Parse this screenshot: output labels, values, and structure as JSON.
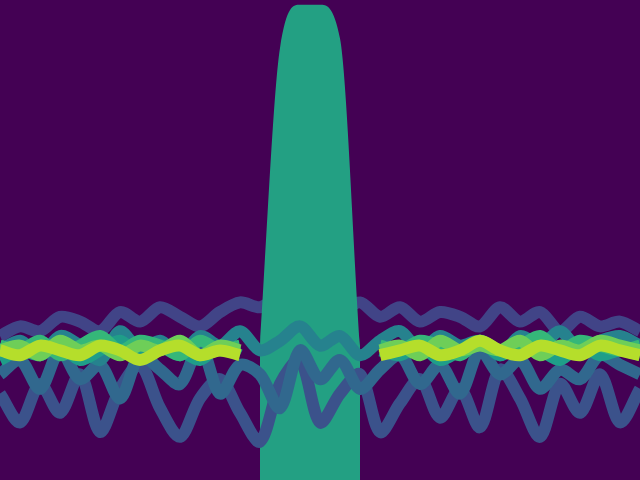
{
  "chart_data": {
    "type": "line",
    "x": [
      0,
      1,
      2,
      3,
      4,
      5,
      6,
      7,
      8,
      9,
      10,
      11,
      12,
      13,
      14,
      15,
      16,
      17,
      18,
      19,
      20,
      21,
      22,
      23,
      24,
      25,
      26,
      27,
      28,
      29,
      30,
      31,
      32
    ],
    "xlim": [
      0,
      32
    ],
    "ylim": [
      0,
      100
    ],
    "grid": false,
    "tick_labels": false,
    "series": [
      {
        "type": "line",
        "color": "#414487",
        "values": [
          30,
          32,
          31,
          34,
          33,
          31,
          35,
          33,
          36,
          34,
          32,
          35,
          37,
          36,
          38,
          37,
          36,
          35,
          37,
          34,
          36,
          33,
          35,
          34,
          32,
          36,
          33,
          35,
          31,
          34,
          32,
          33,
          31
        ]
      },
      {
        "type": "area",
        "color": "#23a083",
        "values": [
          null,
          null,
          null,
          null,
          null,
          null,
          null,
          null,
          null,
          null,
          null,
          null,
          null,
          28,
          90,
          99,
          99,
          92,
          28,
          null,
          null,
          null,
          null,
          null,
          null,
          null,
          null,
          null,
          null,
          null,
          null,
          null,
          null
        ]
      },
      {
        "type": "line",
        "color": "#3b528b",
        "values": [
          18,
          12,
          20,
          14,
          22,
          10,
          19,
          24,
          15,
          9,
          17,
          21,
          14,
          8,
          20,
          25,
          12,
          18,
          22,
          10,
          16,
          21,
          13,
          19,
          11,
          23,
          17,
          9,
          20,
          14,
          22,
          12,
          19
        ]
      },
      {
        "type": "line",
        "color": "#31688e",
        "values": [
          22,
          25,
          19,
          27,
          21,
          24,
          17,
          26,
          23,
          20,
          28,
          18,
          24,
          22,
          15,
          27,
          21,
          25,
          19,
          23,
          26,
          20,
          24,
          18,
          27,
          22,
          25,
          19,
          23,
          21,
          26,
          24,
          22
        ]
      },
      {
        "type": "line",
        "color": "#26828e",
        "values": [
          27,
          29,
          26,
          30,
          28,
          25,
          31,
          27,
          29,
          26,
          30,
          28,
          31,
          27,
          29,
          32,
          28,
          30,
          26,
          29,
          31,
          27,
          30,
          28,
          29,
          26,
          30,
          28,
          31,
          27,
          29,
          30,
          28
        ]
      },
      {
        "type": "line",
        "color": "#1f9e89",
        "values": [
          25,
          27,
          26,
          28,
          25,
          27,
          29,
          26,
          28,
          27,
          25,
          28,
          26,
          null,
          null,
          null,
          null,
          null,
          null,
          27,
          26,
          28,
          25,
          27,
          29,
          26,
          28,
          27,
          25,
          28,
          26,
          27,
          26
        ]
      },
      {
        "type": "line",
        "color": "#35b779",
        "values": [
          28,
          27,
          29,
          26,
          28,
          30,
          27,
          29,
          28,
          26,
          29,
          27,
          28,
          null,
          null,
          null,
          null,
          null,
          null,
          28,
          27,
          29,
          28,
          26,
          29,
          27,
          28,
          30,
          27,
          29,
          28,
          27,
          28
        ]
      },
      {
        "type": "line",
        "color": "#6ece58",
        "values": [
          27,
          28,
          26,
          29,
          27,
          28,
          26,
          28,
          27,
          29,
          26,
          28,
          27,
          null,
          null,
          null,
          null,
          null,
          null,
          27,
          28,
          26,
          29,
          27,
          28,
          27,
          29,
          26,
          28,
          27,
          29,
          28,
          27
        ]
      },
      {
        "type": "line",
        "color": "#b5de2b",
        "values": [
          27,
          26,
          28,
          27,
          26,
          28,
          27,
          25,
          27,
          28,
          26,
          27,
          26,
          null,
          null,
          null,
          null,
          null,
          null,
          26,
          27,
          28,
          26,
          27,
          29,
          27,
          26,
          28,
          27,
          26,
          28,
          27,
          26
        ]
      }
    ]
  }
}
